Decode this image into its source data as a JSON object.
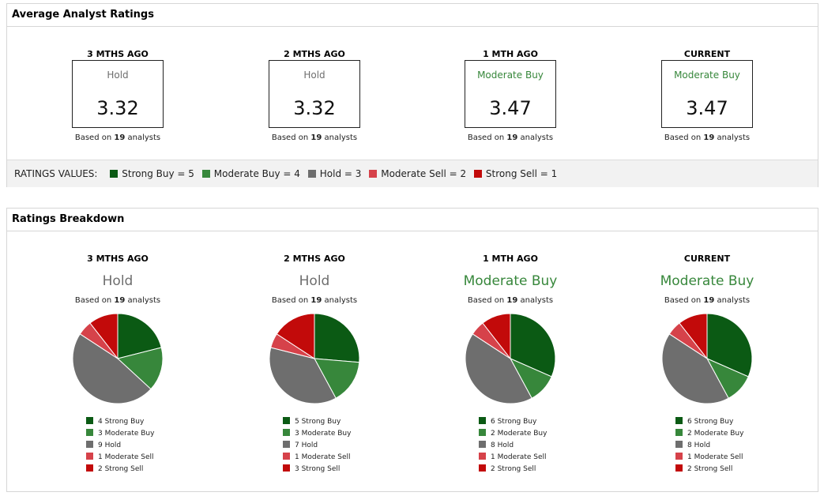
{
  "colors": {
    "strong_buy": "#0b5a14",
    "moderate_buy": "#37873b",
    "hold": "#6e6e6e",
    "moderate_sell": "#d6424a",
    "strong_sell": "#c20a0a",
    "hold_text": "#6e6e6e",
    "buy_text": "#37873b"
  },
  "average": {
    "title": "Average Analyst Ratings",
    "periods": [
      {
        "header": "3 MTHS AGO",
        "rating": "Hold",
        "rating_color": "#6e6e6e",
        "score": "3.32",
        "based_prefix": "Based on",
        "analysts": "19",
        "based_suffix": "analysts"
      },
      {
        "header": "2 MTHS AGO",
        "rating": "Hold",
        "rating_color": "#6e6e6e",
        "score": "3.32",
        "based_prefix": "Based on",
        "analysts": "19",
        "based_suffix": "analysts"
      },
      {
        "header": "1 MTH AGO",
        "rating": "Moderate Buy",
        "rating_color": "#37873b",
        "score": "3.47",
        "based_prefix": "Based on",
        "analysts": "19",
        "based_suffix": "analysts"
      },
      {
        "header": "CURRENT",
        "rating": "Moderate Buy",
        "rating_color": "#37873b",
        "score": "3.47",
        "based_prefix": "Based on",
        "analysts": "19",
        "based_suffix": "analysts"
      }
    ],
    "ratings_values_label": "RATINGS VALUES:",
    "ratings_values": [
      {
        "label": "Strong Buy = 5",
        "color": "#0b5a14"
      },
      {
        "label": "Moderate Buy = 4",
        "color": "#37873b"
      },
      {
        "label": "Hold = 3",
        "color": "#6e6e6e"
      },
      {
        "label": "Moderate Sell = 2",
        "color": "#d6424a"
      },
      {
        "label": "Strong Sell = 1",
        "color": "#c20a0a"
      }
    ]
  },
  "breakdown": {
    "title": "Ratings Breakdown"
  },
  "chart_data": [
    {
      "type": "pie",
      "title": "3 MTHS AGO",
      "subtitle": "Hold",
      "subtitle_color": "#6e6e6e",
      "based_prefix": "Based on",
      "analysts": "19",
      "based_suffix": "analysts",
      "categories": [
        "Strong Buy",
        "Moderate Buy",
        "Hold",
        "Moderate Sell",
        "Strong Sell"
      ],
      "values": [
        4,
        3,
        9,
        1,
        2
      ],
      "colors": [
        "#0b5a14",
        "#37873b",
        "#6e6e6e",
        "#d6424a",
        "#c20a0a"
      ],
      "legend": [
        "4 Strong Buy",
        "3 Moderate Buy",
        "9 Hold",
        "1 Moderate Sell",
        "2 Strong Sell"
      ]
    },
    {
      "type": "pie",
      "title": "2 MTHS AGO",
      "subtitle": "Hold",
      "subtitle_color": "#6e6e6e",
      "based_prefix": "Based on",
      "analysts": "19",
      "based_suffix": "analysts",
      "categories": [
        "Strong Buy",
        "Moderate Buy",
        "Hold",
        "Moderate Sell",
        "Strong Sell"
      ],
      "values": [
        5,
        3,
        7,
        1,
        3
      ],
      "colors": [
        "#0b5a14",
        "#37873b",
        "#6e6e6e",
        "#d6424a",
        "#c20a0a"
      ],
      "legend": [
        "5 Strong Buy",
        "3 Moderate Buy",
        "7 Hold",
        "1 Moderate Sell",
        "3 Strong Sell"
      ]
    },
    {
      "type": "pie",
      "title": "1 MTH AGO",
      "subtitle": "Moderate Buy",
      "subtitle_color": "#37873b",
      "based_prefix": "Based on",
      "analysts": "19",
      "based_suffix": "analysts",
      "categories": [
        "Strong Buy",
        "Moderate Buy",
        "Hold",
        "Moderate Sell",
        "Strong Sell"
      ],
      "values": [
        6,
        2,
        8,
        1,
        2
      ],
      "colors": [
        "#0b5a14",
        "#37873b",
        "#6e6e6e",
        "#d6424a",
        "#c20a0a"
      ],
      "legend": [
        "6 Strong Buy",
        "2 Moderate Buy",
        "8 Hold",
        "1 Moderate Sell",
        "2 Strong Sell"
      ]
    },
    {
      "type": "pie",
      "title": "CURRENT",
      "subtitle": "Moderate Buy",
      "subtitle_color": "#37873b",
      "based_prefix": "Based on",
      "analysts": "19",
      "based_suffix": "analysts",
      "categories": [
        "Strong Buy",
        "Moderate Buy",
        "Hold",
        "Moderate Sell",
        "Strong Sell"
      ],
      "values": [
        6,
        2,
        8,
        1,
        2
      ],
      "colors": [
        "#0b5a14",
        "#37873b",
        "#6e6e6e",
        "#d6424a",
        "#c20a0a"
      ],
      "legend": [
        "6 Strong Buy",
        "2 Moderate Buy",
        "8 Hold",
        "1 Moderate Sell",
        "2 Strong Sell"
      ]
    }
  ]
}
